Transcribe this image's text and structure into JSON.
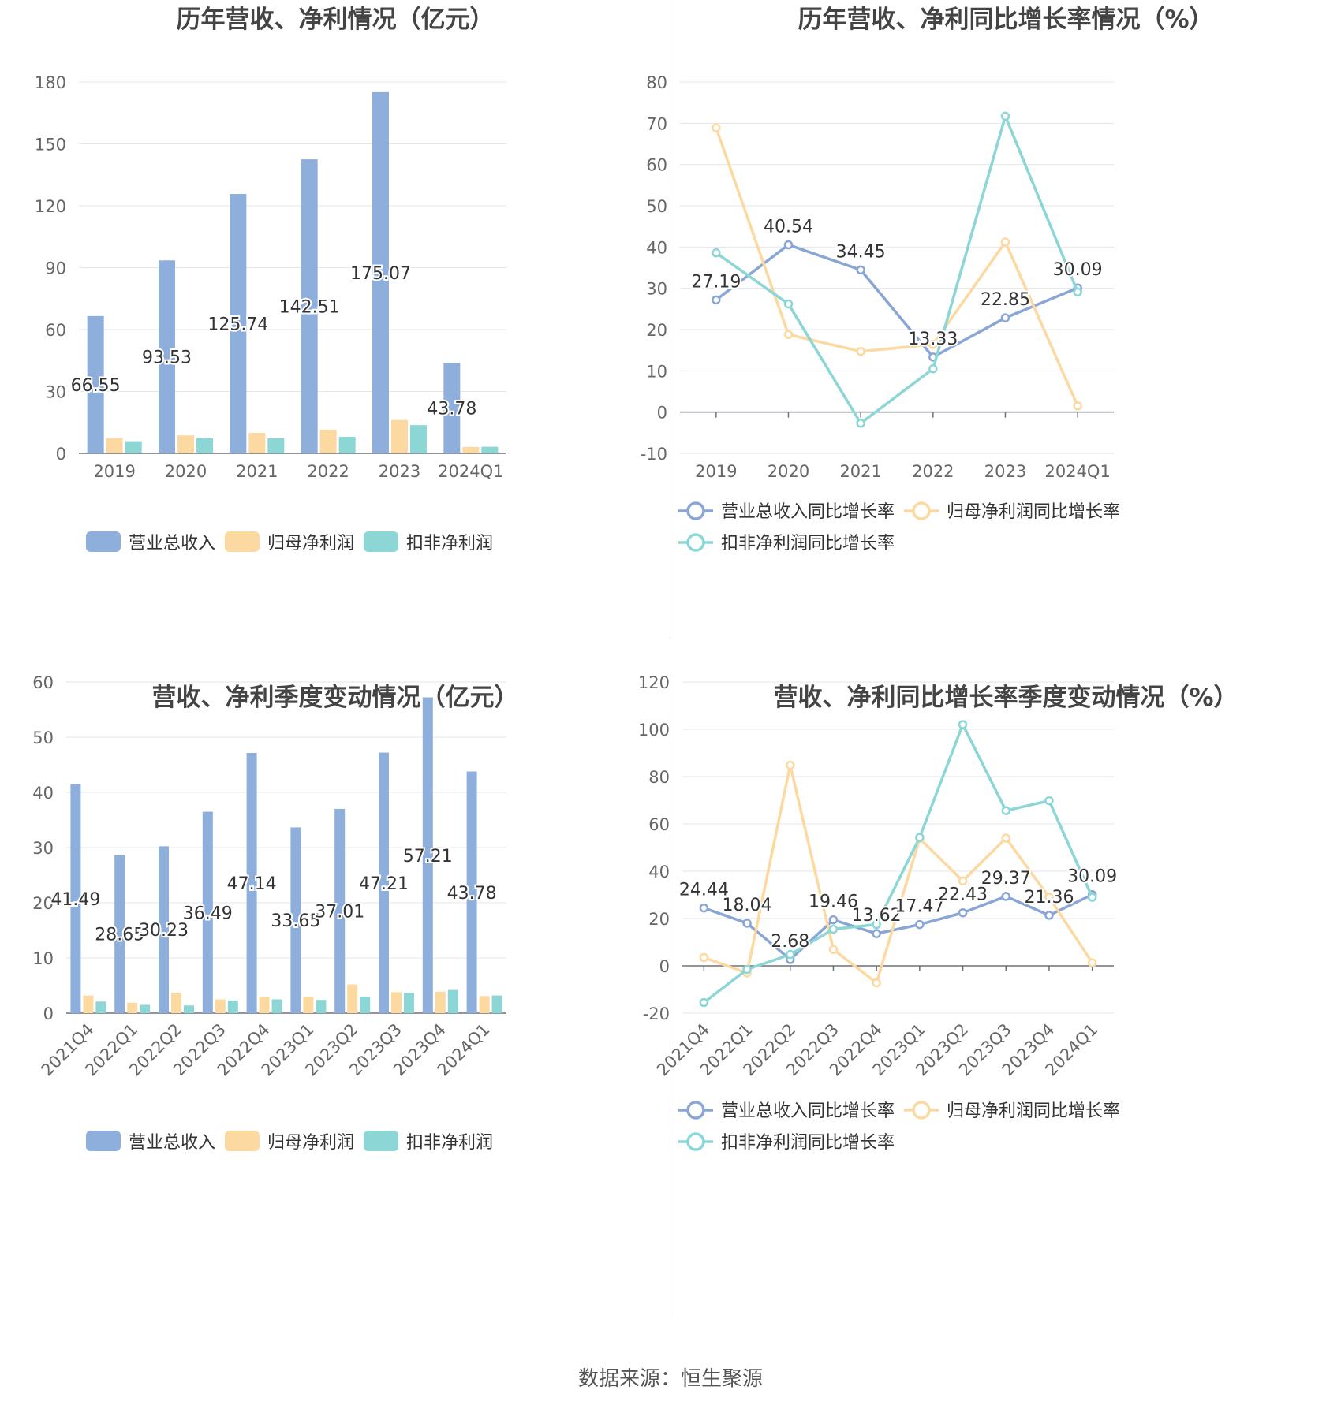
{
  "source": "数据来源：恒生聚源",
  "chart_data": [
    {
      "type": "bar",
      "title": "历年营收、净利情况（亿元）",
      "categories": [
        "2019",
        "2020",
        "2021",
        "2022",
        "2023",
        "2024Q1"
      ],
      "ylim": [
        0,
        180
      ],
      "yticks": [
        0,
        30,
        60,
        90,
        120,
        150,
        180
      ],
      "grid": true,
      "legend": "bottom",
      "series": [
        {
          "name": "营业总收入",
          "color": "#8eaedc",
          "values": [
            66.55,
            93.53,
            125.74,
            142.51,
            175.07,
            43.78
          ],
          "labels": [
            "66.55",
            "93.53",
            "125.74",
            "142.51",
            "175.07",
            "43.78"
          ]
        },
        {
          "name": "归母净利润",
          "color": "#fcd9a0",
          "values": [
            7.4,
            8.7,
            9.9,
            11.5,
            16.2,
            3.1
          ]
        },
        {
          "name": "扣非净利润",
          "color": "#8dd6d6",
          "values": [
            5.9,
            7.4,
            7.3,
            8.0,
            13.7,
            3.2
          ]
        }
      ]
    },
    {
      "type": "line",
      "title": "历年营收、净利同比增长率情况（%）",
      "categories": [
        "2019",
        "2020",
        "2021",
        "2022",
        "2023",
        "2024Q1"
      ],
      "ylim": [
        -10,
        80
      ],
      "yticks": [
        -10,
        0,
        10,
        20,
        30,
        40,
        50,
        60,
        70,
        80
      ],
      "grid": true,
      "legend": "bottom",
      "series": [
        {
          "name": "营业总收入同比增长率",
          "color": "#8aa6d6",
          "values": [
            27.19,
            40.54,
            34.45,
            13.33,
            22.85,
            30.09
          ],
          "labels": [
            "27.19",
            "40.54",
            "34.45",
            "13.33",
            "22.85",
            "30.09"
          ]
        },
        {
          "name": "归母净利润同比增长率",
          "color": "#fcd9a0",
          "values": [
            68.9,
            18.8,
            14.7,
            16.4,
            41.2,
            1.5
          ]
        },
        {
          "name": "扣非净利润同比增长率",
          "color": "#8dd6d6",
          "values": [
            38.6,
            26.2,
            -2.7,
            10.5,
            71.7,
            29.1
          ]
        }
      ]
    },
    {
      "type": "bar",
      "title": "营收、净利季度变动情况（亿元）",
      "categories": [
        "2021Q4",
        "2022Q1",
        "2022Q2",
        "2022Q3",
        "2022Q4",
        "2023Q1",
        "2023Q2",
        "2023Q3",
        "2023Q4",
        "2024Q1"
      ],
      "ylim": [
        0,
        60
      ],
      "yticks": [
        0,
        10,
        20,
        30,
        40,
        50,
        60
      ],
      "grid": true,
      "legend": "bottom",
      "series": [
        {
          "name": "营业总收入",
          "color": "#8eaedc",
          "values": [
            41.49,
            28.65,
            30.23,
            36.49,
            47.14,
            33.65,
            37.01,
            47.21,
            57.21,
            43.78
          ],
          "labels": [
            "41.49",
            "28.65",
            "30.23",
            "36.49",
            "47.14",
            "33.65",
            "37.01",
            "47.21",
            "57.21",
            "43.78"
          ]
        },
        {
          "name": "归母净利润",
          "color": "#fcd9a0",
          "values": [
            3.2,
            1.9,
            3.7,
            2.5,
            3.0,
            3.0,
            5.2,
            3.8,
            3.9,
            3.1
          ]
        },
        {
          "name": "扣非净利润",
          "color": "#8dd6d6",
          "values": [
            2.1,
            1.5,
            1.4,
            2.3,
            2.5,
            2.4,
            3.0,
            3.7,
            4.2,
            3.2
          ]
        }
      ]
    },
    {
      "type": "line",
      "title": "营收、净利同比增长率季度变动情况（%）",
      "categories": [
        "2021Q4",
        "2022Q1",
        "2022Q2",
        "2022Q3",
        "2022Q4",
        "2023Q1",
        "2023Q2",
        "2023Q3",
        "2023Q4",
        "2024Q1"
      ],
      "ylim": [
        -20,
        120
      ],
      "yticks": [
        -20,
        0,
        20,
        40,
        60,
        80,
        100,
        120
      ],
      "grid": true,
      "legend": "bottom",
      "series": [
        {
          "name": "营业总收入同比增长率",
          "color": "#8aa6d6",
          "values": [
            24.44,
            18.04,
            2.68,
            19.46,
            13.62,
            17.47,
            22.43,
            29.37,
            21.36,
            30.09
          ],
          "labels": [
            "24.44",
            "18.04",
            "2.68",
            "19.46",
            "13.62",
            "17.47",
            "22.43",
            "29.37",
            "21.36",
            "30.09"
          ]
        },
        {
          "name": "归母净利润同比增长率",
          "color": "#fcd9a0",
          "values": [
            3.5,
            -3.0,
            84.8,
            6.9,
            -7.2,
            53.8,
            35.9,
            54.0,
            29.0,
            1.3
          ]
        },
        {
          "name": "扣非净利润同比增长率",
          "color": "#8dd6d6",
          "values": [
            -15.5,
            -1.5,
            4.8,
            15.5,
            17.5,
            54.3,
            102.0,
            65.6,
            69.8,
            29.0
          ]
        }
      ]
    }
  ]
}
